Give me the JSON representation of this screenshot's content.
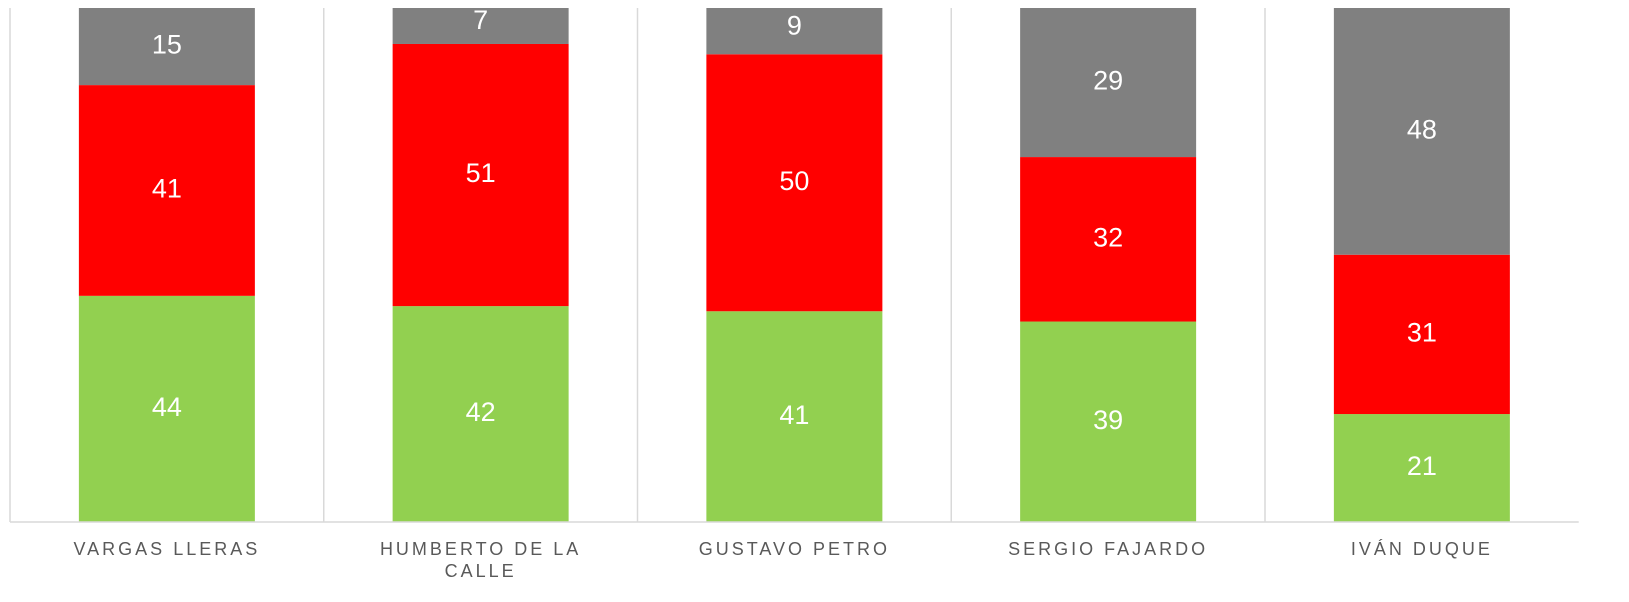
{
  "chart_data": {
    "type": "stacked-bar",
    "categories": [
      "VARGAS LLERAS",
      "HUMBERTO DE LA CALLE",
      "GUSTAVO PETRO",
      "SERGIO FAJARDO",
      "IVÁN DUQUE"
    ],
    "series": [
      {
        "color": "#92d050",
        "values": [
          44,
          42,
          41,
          39,
          21
        ]
      },
      {
        "color": "#ff0000",
        "values": [
          41,
          51,
          50,
          32,
          31
        ]
      },
      {
        "color": "#808080",
        "values": [
          15,
          7,
          9,
          29,
          48
        ]
      }
    ],
    "ylim": [
      0,
      100
    ]
  }
}
